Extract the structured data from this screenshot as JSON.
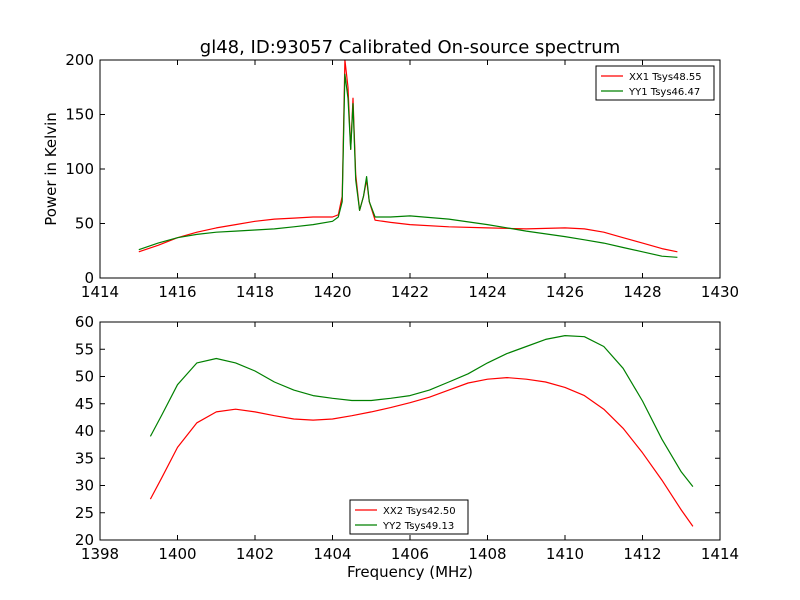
{
  "chart_data": [
    {
      "type": "line",
      "title": "gl48, ID:93057 Calibrated On-source spectrum",
      "xlabel": "",
      "ylabel": "Power in Kelvin",
      "xlim": [
        1414,
        1430
      ],
      "ylim": [
        0,
        200
      ],
      "xticks": [
        "1414",
        "1416",
        "1418",
        "1420",
        "1422",
        "1424",
        "1426",
        "1428",
        "1430"
      ],
      "yticks": [
        "0",
        "50",
        "100",
        "150",
        "200"
      ],
      "grid": false,
      "legend_position": "top-right",
      "series": [
        {
          "name": "XX1 Tsys48.55",
          "color": "#ff0000",
          "x": [
            1415.0,
            1415.5,
            1416.0,
            1416.5,
            1417.0,
            1417.5,
            1418.0,
            1418.5,
            1419.0,
            1419.5,
            1420.0,
            1420.15,
            1420.25,
            1420.32,
            1420.4,
            1420.47,
            1420.53,
            1420.6,
            1420.7,
            1420.8,
            1420.88,
            1420.95,
            1421.1,
            1421.5,
            1422.0,
            1423.0,
            1424.0,
            1425.0,
            1426.0,
            1426.5,
            1427.0,
            1427.5,
            1428.0,
            1428.5,
            1428.9
          ],
          "values": [
            24,
            30,
            37,
            42,
            46,
            49,
            52,
            54,
            55,
            56,
            56,
            58,
            75,
            200,
            175,
            118,
            165,
            95,
            62,
            75,
            90,
            70,
            53,
            51,
            49,
            47,
            46,
            45,
            46,
            45,
            42,
            37,
            32,
            27,
            24
          ]
        },
        {
          "name": "YY1 Tsys46.47",
          "color": "#008000",
          "x": [
            1415.0,
            1415.5,
            1416.0,
            1416.5,
            1417.0,
            1417.5,
            1418.0,
            1418.5,
            1419.0,
            1419.5,
            1420.0,
            1420.15,
            1420.25,
            1420.32,
            1420.4,
            1420.47,
            1420.53,
            1420.6,
            1420.7,
            1420.8,
            1420.88,
            1420.95,
            1421.1,
            1421.5,
            1422.0,
            1423.0,
            1424.0,
            1425.0,
            1426.0,
            1426.5,
            1427.0,
            1427.5,
            1428.0,
            1428.5,
            1428.9
          ],
          "values": [
            26,
            32,
            37,
            40,
            42,
            43,
            44,
            45,
            47,
            49,
            52,
            56,
            70,
            187,
            165,
            118,
            160,
            90,
            62,
            75,
            93,
            70,
            56,
            56,
            57,
            54,
            49,
            43,
            38,
            35,
            32,
            28,
            24,
            20,
            19
          ]
        }
      ]
    },
    {
      "type": "line",
      "title": "",
      "xlabel": "Frequency (MHz)",
      "ylabel": "",
      "xlim": [
        1398,
        1414
      ],
      "ylim": [
        20,
        60
      ],
      "xticks": [
        "1398",
        "1400",
        "1402",
        "1404",
        "1406",
        "1408",
        "1410",
        "1412",
        "1414"
      ],
      "yticks": [
        "20",
        "25",
        "30",
        "35",
        "40",
        "45",
        "50",
        "55",
        "60"
      ],
      "grid": false,
      "legend_position": "bottom-center",
      "series": [
        {
          "name": "XX2 Tsys42.50",
          "color": "#ff0000",
          "x": [
            1399.3,
            1399.6,
            1400.0,
            1400.5,
            1401.0,
            1401.5,
            1402.0,
            1402.5,
            1403.0,
            1403.5,
            1404.0,
            1404.5,
            1405.0,
            1405.5,
            1406.0,
            1406.5,
            1407.0,
            1407.5,
            1408.0,
            1408.5,
            1409.0,
            1409.5,
            1410.0,
            1410.5,
            1411.0,
            1411.5,
            1412.0,
            1412.5,
            1413.0,
            1413.3
          ],
          "values": [
            27.5,
            31.5,
            37,
            41.5,
            43.5,
            44,
            43.5,
            42.8,
            42.2,
            42,
            42.2,
            42.8,
            43.5,
            44.3,
            45.2,
            46.2,
            47.5,
            48.8,
            49.5,
            49.8,
            49.5,
            49,
            48,
            46.5,
            44,
            40.5,
            36,
            31,
            25.5,
            22.5
          ]
        },
        {
          "name": "YY2 Tsys49.13",
          "color": "#008000",
          "x": [
            1399.3,
            1399.6,
            1400.0,
            1400.5,
            1401.0,
            1401.5,
            1402.0,
            1402.5,
            1403.0,
            1403.5,
            1404.0,
            1404.5,
            1405.0,
            1405.5,
            1406.0,
            1406.5,
            1407.0,
            1407.5,
            1408.0,
            1408.5,
            1409.0,
            1409.5,
            1410.0,
            1410.5,
            1411.0,
            1411.5,
            1412.0,
            1412.5,
            1413.0,
            1413.3
          ],
          "values": [
            39,
            43,
            48.5,
            52.5,
            53.3,
            52.5,
            51,
            49,
            47.5,
            46.5,
            46,
            45.6,
            45.6,
            46,
            46.5,
            47.5,
            49,
            50.5,
            52.5,
            54.2,
            55.5,
            56.8,
            57.5,
            57.3,
            55.5,
            51.5,
            45.5,
            38.5,
            32.5,
            29.8
          ]
        }
      ]
    }
  ]
}
